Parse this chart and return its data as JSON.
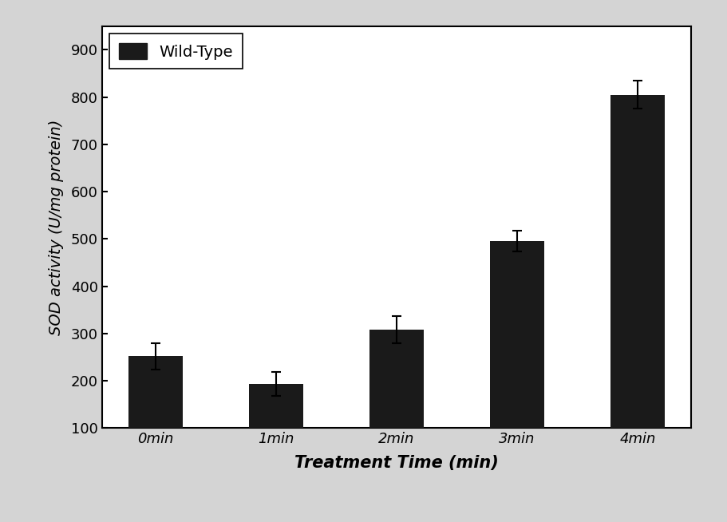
{
  "categories": [
    "0min",
    "1min",
    "2min",
    "3min",
    "4min"
  ],
  "values": [
    252,
    193,
    308,
    495,
    805
  ],
  "errors": [
    28,
    25,
    28,
    22,
    30
  ],
  "bar_color": "#1a1a1a",
  "ylabel": "SOD activity (U/mg protein)",
  "xlabel": "Treatment Time (min)",
  "legend_label": "Wild-Type",
  "ylim": [
    100,
    950
  ],
  "yticks": [
    100,
    200,
    300,
    400,
    500,
    600,
    700,
    800,
    900
  ],
  "background_color": "#d4d4d4",
  "axes_color": "#ffffff",
  "ylabel_fontsize": 14,
  "xlabel_fontsize": 15,
  "tick_fontsize": 13,
  "legend_fontsize": 14,
  "bar_width": 0.45,
  "figsize": [
    9.12,
    6.54
  ],
  "dpi": 100
}
